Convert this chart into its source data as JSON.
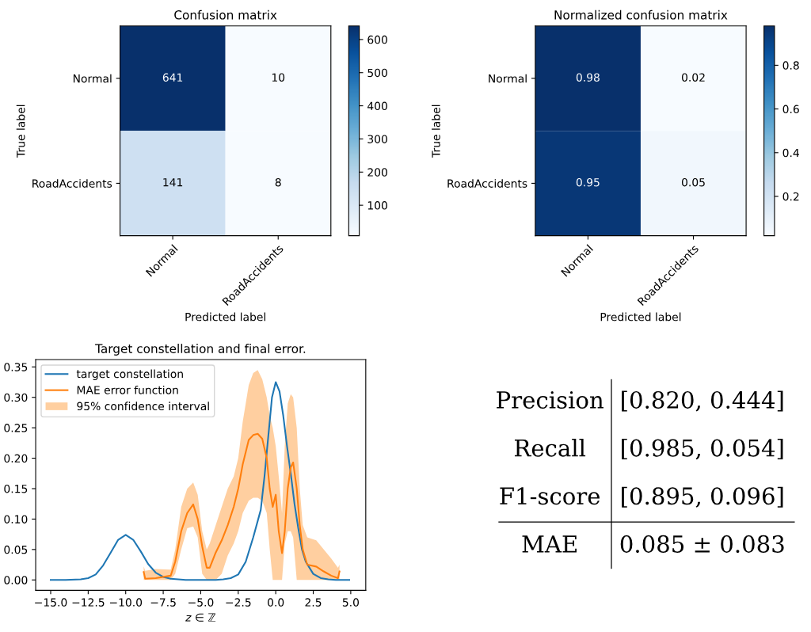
{
  "chart_data": [
    {
      "type": "heatmap",
      "title": "Confusion matrix",
      "xlabel": "Predicted label",
      "ylabel": "True label",
      "categories": [
        "Normal",
        "RoadAccidents"
      ],
      "y_categories": [
        "Normal",
        "RoadAccidents"
      ],
      "cells": [
        [
          641,
          10
        ],
        [
          141,
          8
        ]
      ],
      "data_labels": true,
      "clim": [
        8,
        641
      ],
      "cticks": [
        100,
        200,
        300,
        400,
        500,
        600
      ]
    },
    {
      "type": "heatmap",
      "title": "Normalized confusion matrix",
      "xlabel": "Predicted label",
      "ylabel": "True label",
      "categories": [
        "Normal",
        "RoadAccidents"
      ],
      "y_categories": [
        "Normal",
        "RoadAccidents"
      ],
      "cells": [
        [
          0.98,
          0.02
        ],
        [
          0.95,
          0.05
        ]
      ],
      "data_labels": true,
      "clim": [
        0.02,
        0.98
      ],
      "cticks": [
        0.2,
        0.4,
        0.6,
        0.8
      ]
    },
    {
      "type": "line",
      "title": "Target constellation and final error.",
      "xlabel": "z ∈ ℤ",
      "legend": "top left",
      "grid": false,
      "xlim": [
        -16,
        6
      ],
      "ylim": [
        -0.017,
        0.362
      ],
      "xticks": [
        {
          "value": -15,
          "label": "−15.0"
        },
        {
          "value": -12.5,
          "label": "−12.5"
        },
        {
          "value": -10,
          "label": "−10.0"
        },
        {
          "value": -7.5,
          "label": "−7.5"
        },
        {
          "value": -5,
          "label": "−5.0"
        },
        {
          "value": -2.5,
          "label": "−2.5"
        },
        {
          "value": 0,
          "label": "0.0"
        },
        {
          "value": 2.5,
          "label": "2.5"
        },
        {
          "value": 5,
          "label": "5.0"
        }
      ],
      "yticks": [
        {
          "value": 0,
          "label": "0.00"
        },
        {
          "value": 0.05,
          "label": "0.05"
        },
        {
          "value": 0.1,
          "label": "0.10"
        },
        {
          "value": 0.15,
          "label": "0.15"
        },
        {
          "value": 0.2,
          "label": "0.20"
        },
        {
          "value": 0.25,
          "label": "0.25"
        },
        {
          "value": 0.3,
          "label": "0.30"
        },
        {
          "value": 0.35,
          "label": "0.35"
        }
      ],
      "series": [
        {
          "name": "target constellation",
          "color": "#1f77b4",
          "x": [
            -15,
            -14,
            -13,
            -12.5,
            -12,
            -11.5,
            -11,
            -10.5,
            -10,
            -9.5,
            -9,
            -8.5,
            -8,
            -7.5,
            -7,
            -6,
            -5,
            -4,
            -3.5,
            -3,
            -2.5,
            -2,
            -1.5,
            -1,
            -0.75,
            -0.5,
            -0.25,
            0,
            0.25,
            0.5,
            0.75,
            1,
            1.25,
            1.5,
            1.75,
            2,
            2.5,
            3,
            3.5,
            4,
            4.9
          ],
          "values": [
            0,
            0,
            0.001,
            0.003,
            0.009,
            0.024,
            0.045,
            0.066,
            0.074,
            0.066,
            0.047,
            0.026,
            0.012,
            0.005,
            0.002,
            0,
            0,
            0,
            0.001,
            0.003,
            0.009,
            0.03,
            0.07,
            0.115,
            0.17,
            0.235,
            0.3,
            0.325,
            0.31,
            0.27,
            0.22,
            0.175,
            0.125,
            0.085,
            0.05,
            0.03,
            0.01,
            0.003,
            0.001,
            0,
            0
          ]
        },
        {
          "name": "MAE error function",
          "color": "#ff7f0e",
          "x": [
            -8.8,
            -8.7,
            -8,
            -7,
            -6.7,
            -6.3,
            -5.9,
            -5.5,
            -5.2,
            -4.9,
            -4.6,
            -4.4,
            -4,
            -3.6,
            -3.2,
            -2.8,
            -2.5,
            -2.2,
            -1.8,
            -1.5,
            -1.2,
            -0.9,
            -0.6,
            -0.4,
            -0.2,
            0,
            0.2,
            0.42,
            0.6,
            0.8,
            1,
            1.16,
            1.4,
            1.6,
            1.8,
            2.1,
            2.7,
            3.2,
            3.7,
            4.15,
            4.25
          ],
          "values": [
            0.013,
            0.002,
            0.003,
            0.007,
            0.03,
            0.08,
            0.11,
            0.124,
            0.1,
            0.055,
            0.02,
            0.02,
            0.045,
            0.065,
            0.09,
            0.12,
            0.15,
            0.19,
            0.23,
            0.238,
            0.24,
            0.232,
            0.2,
            0.15,
            0.12,
            0.14,
            0.08,
            0.044,
            0.08,
            0.15,
            0.185,
            0.193,
            0.15,
            0.09,
            0.05,
            0.025,
            0.022,
            0.014,
            0.007,
            0.003,
            0.014
          ],
          "upper": [
            0.022,
            0.015,
            0.018,
            0.017,
            0.05,
            0.12,
            0.15,
            0.16,
            0.14,
            0.08,
            0.05,
            0.06,
            0.09,
            0.12,
            0.15,
            0.17,
            0.2,
            0.26,
            0.32,
            0.34,
            0.345,
            0.33,
            0.3,
            0.27,
            0.25,
            0.22,
            0.17,
            0.11,
            0.22,
            0.29,
            0.305,
            0.3,
            0.25,
            0.15,
            0.09,
            0.07,
            0.065,
            0.05,
            0.035,
            0.02,
            0.025
          ],
          "lower": [
            0,
            0,
            0,
            0,
            0.01,
            0.05,
            0.085,
            0.088,
            0.07,
            0.01,
            0,
            0,
            0,
            0.01,
            0.04,
            0.06,
            0.08,
            0.11,
            0.13,
            0.135,
            0.135,
            0.13,
            0.11,
            0.05,
            0,
            0,
            0,
            0,
            0.06,
            0.08,
            0.08,
            0.07,
            0,
            0,
            0,
            0,
            0,
            0,
            0,
            0,
            0
          ]
        },
        {
          "name": "95% confidence interval",
          "type": "area",
          "color": "#ffbb78"
        }
      ]
    },
    {
      "type": "other",
      "annotations": [
        "Precision",
        "[0.820, 0.444]",
        "Recall",
        "[0.985, 0.054]",
        "F1-score",
        "[0.895, 0.096]",
        "MAE",
        "0.085 ± 0.083"
      ]
    }
  ]
}
